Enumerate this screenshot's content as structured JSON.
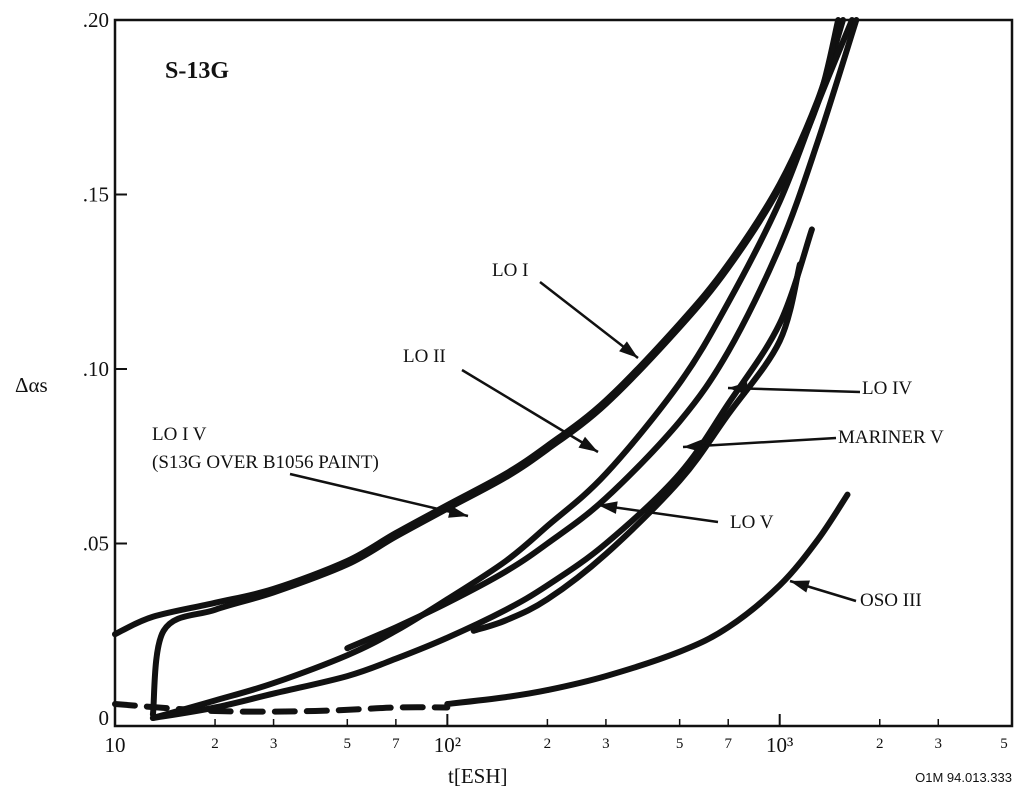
{
  "chart_data": {
    "type": "line",
    "title": "S-13G",
    "xlabel": "t[ESH]",
    "ylabel": "Δαs",
    "x_scale": "log",
    "xlim": [
      10,
      5000
    ],
    "ylim": [
      0,
      0.2
    ],
    "grid": false,
    "x_major_ticks": [
      {
        "value": 10,
        "label": "10"
      },
      {
        "value": 100,
        "label": "10²"
      },
      {
        "value": 1000,
        "label": "10³"
      }
    ],
    "x_minor_ticks": [
      {
        "value": 20,
        "label": "2"
      },
      {
        "value": 30,
        "label": "3"
      },
      {
        "value": 50,
        "label": "5"
      },
      {
        "value": 70,
        "label": "7"
      },
      {
        "value": 200,
        "label": "2"
      },
      {
        "value": 300,
        "label": "3"
      },
      {
        "value": 500,
        "label": "5"
      },
      {
        "value": 700,
        "label": "7"
      },
      {
        "value": 2000,
        "label": "2"
      },
      {
        "value": 3000,
        "label": "3"
      },
      {
        "value": 5000,
        "label": "5"
      }
    ],
    "y_ticks": [
      {
        "value": 0,
        "label": "0"
      },
      {
        "value": 0.05,
        "label": ".05"
      },
      {
        "value": 0.1,
        "label": ".10"
      },
      {
        "value": 0.15,
        "label": ".15"
      },
      {
        "value": 0.2,
        "label": ".20"
      }
    ],
    "series": [
      {
        "name": "LO IV (S13G OVER B1056 PAINT)",
        "style": "solid",
        "points": [
          [
            10,
            0.024
          ],
          [
            13,
            0.029
          ],
          [
            20,
            0.033
          ],
          [
            30,
            0.037
          ],
          [
            50,
            0.045
          ],
          [
            70,
            0.053
          ],
          [
            100,
            0.061
          ],
          [
            150,
            0.07
          ],
          [
            200,
            0.078
          ],
          [
            300,
            0.091
          ],
          [
            500,
            0.113
          ],
          [
            700,
            0.13
          ],
          [
            1000,
            0.153
          ],
          [
            1300,
            0.177
          ],
          [
            1550,
            0.2
          ]
        ]
      },
      {
        "name": "LO I",
        "style": "solid",
        "points": [
          [
            13,
            0.001
          ],
          [
            14,
            0.025
          ],
          [
            20,
            0.031
          ],
          [
            30,
            0.036
          ],
          [
            50,
            0.044
          ],
          [
            70,
            0.052
          ],
          [
            100,
            0.06
          ],
          [
            150,
            0.069
          ],
          [
            200,
            0.077
          ],
          [
            300,
            0.09
          ],
          [
            500,
            0.112
          ],
          [
            700,
            0.129
          ],
          [
            1000,
            0.152
          ],
          [
            1300,
            0.176
          ],
          [
            1500,
            0.2
          ]
        ]
      },
      {
        "name": "LO II",
        "style": "solid",
        "points": [
          [
            13,
            0.0
          ],
          [
            20,
            0.005
          ],
          [
            30,
            0.01
          ],
          [
            50,
            0.018
          ],
          [
            70,
            0.025
          ],
          [
            100,
            0.034
          ],
          [
            150,
            0.045
          ],
          [
            200,
            0.055
          ],
          [
            300,
            0.07
          ],
          [
            500,
            0.096
          ],
          [
            700,
            0.119
          ],
          [
            1000,
            0.148
          ],
          [
            1300,
            0.176
          ],
          [
            1650,
            0.2
          ]
        ]
      },
      {
        "name": "LO V",
        "style": "solid",
        "points": [
          [
            50,
            0.02
          ],
          [
            70,
            0.026
          ],
          [
            100,
            0.033
          ],
          [
            150,
            0.042
          ],
          [
            200,
            0.05
          ],
          [
            300,
            0.063
          ],
          [
            500,
            0.085
          ],
          [
            700,
            0.105
          ],
          [
            1000,
            0.135
          ],
          [
            1300,
            0.165
          ],
          [
            1700,
            0.2
          ]
        ]
      },
      {
        "name": "MARINER V",
        "style": "solid",
        "points": [
          [
            13,
            0.0
          ],
          [
            20,
            0.003
          ],
          [
            30,
            0.007
          ],
          [
            50,
            0.012
          ],
          [
            70,
            0.017
          ],
          [
            100,
            0.023
          ],
          [
            150,
            0.031
          ],
          [
            200,
            0.038
          ],
          [
            300,
            0.05
          ],
          [
            500,
            0.07
          ],
          [
            700,
            0.09
          ],
          [
            1000,
            0.113
          ],
          [
            1250,
            0.14
          ]
        ]
      },
      {
        "name": "LO IV",
        "style": "solid",
        "points": [
          [
            120,
            0.025
          ],
          [
            150,
            0.028
          ],
          [
            200,
            0.034
          ],
          [
            300,
            0.047
          ],
          [
            500,
            0.068
          ],
          [
            700,
            0.087
          ],
          [
            1000,
            0.108
          ],
          [
            1150,
            0.13
          ]
        ]
      },
      {
        "name": "OSO III",
        "style": "solid",
        "points": [
          [
            100,
            0.004
          ],
          [
            150,
            0.006
          ],
          [
            200,
            0.008
          ],
          [
            300,
            0.012
          ],
          [
            500,
            0.019
          ],
          [
            700,
            0.026
          ],
          [
            1000,
            0.038
          ],
          [
            1300,
            0.051
          ],
          [
            1600,
            0.064
          ]
        ]
      },
      {
        "name": "",
        "style": "dashed",
        "points": [
          [
            10,
            0.004
          ],
          [
            20,
            0.002
          ],
          [
            40,
            0.002
          ],
          [
            70,
            0.003
          ],
          [
            100,
            0.003
          ]
        ]
      }
    ],
    "annotations": [
      {
        "id": "lo1",
        "text": "LO I"
      },
      {
        "id": "lo2",
        "text": "LO II"
      },
      {
        "id": "lo4",
        "text": "LO IV"
      },
      {
        "id": "mariner",
        "text": "MARINER V"
      },
      {
        "id": "lo4paint1",
        "text": "LO I V"
      },
      {
        "id": "lo4paint2",
        "text": "(S13G OVER B1056 PAINT)"
      },
      {
        "id": "lo5",
        "text": "LO V"
      },
      {
        "id": "oso",
        "text": "OSO III"
      }
    ]
  },
  "figure_id": "O1M 94.013.333"
}
